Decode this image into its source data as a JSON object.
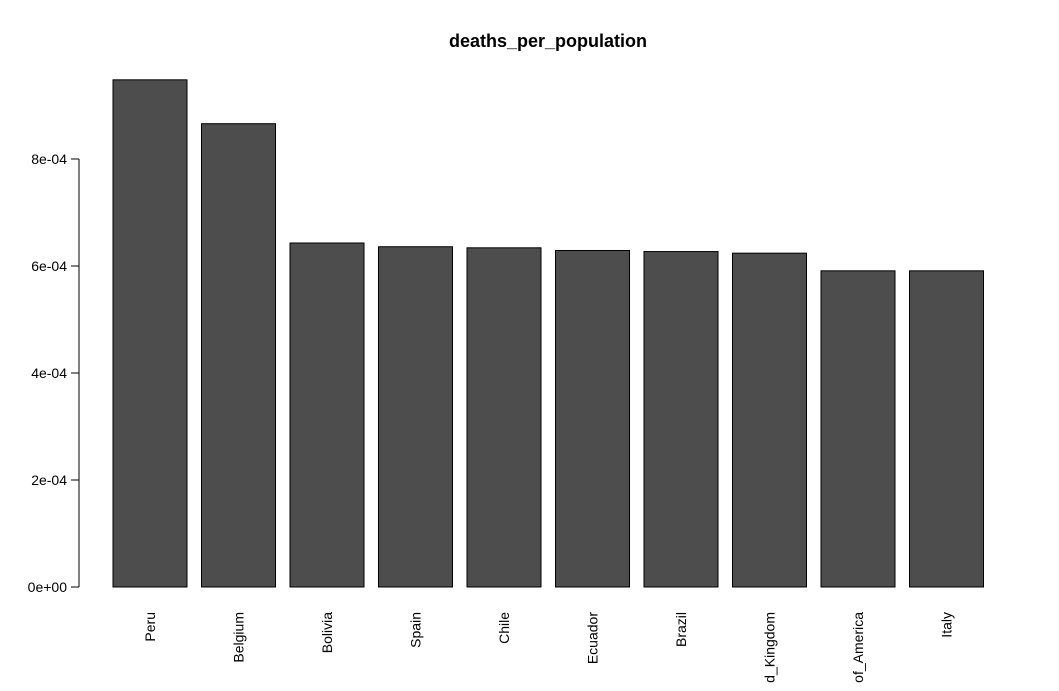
{
  "chart_data": {
    "type": "bar",
    "title": "deaths_per_population",
    "xlabel": "",
    "ylabel": "",
    "categories": [
      "Peru",
      "Belgium",
      "Bolivia",
      "Spain",
      "Chile",
      "Ecuador",
      "Brazil",
      "United_Kingdom",
      "United_States_of_America",
      "Italy"
    ],
    "category_labels_visible": [
      "Peru",
      "Belgium",
      "Bolivia",
      "Spain",
      "Chile",
      "Ecuador",
      "Brazil",
      "d_Kingdom",
      "of_America",
      "Italy"
    ],
    "values": [
      0.000948,
      0.000866,
      0.000643,
      0.000636,
      0.000634,
      0.000629,
      0.000627,
      0.000624,
      0.000591,
      0.000591
    ],
    "ylim": [
      0,
      0.00095
    ],
    "yticks": [
      0,
      0.0002,
      0.0004,
      0.0006,
      0.0008
    ],
    "ytick_labels": [
      "0e+00",
      "2e-04",
      "4e-04",
      "6e-04",
      "8e-04"
    ],
    "bar_color": "#4d4d4d",
    "grid": false,
    "legend": "none"
  }
}
